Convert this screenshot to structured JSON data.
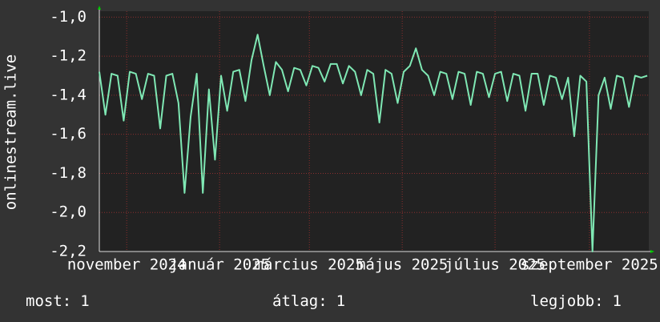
{
  "chart_data": {
    "type": "line",
    "y_label": "onlinestream.live",
    "xlim": [
      0,
      361
    ],
    "xticks": [
      {
        "value": 18,
        "label": "november 2024"
      },
      {
        "value": 79,
        "label": "január 2025"
      },
      {
        "value": 138,
        "label": "március 2025"
      },
      {
        "value": 199,
        "label": "május 2025"
      },
      {
        "value": 260,
        "label": "július 2025"
      },
      {
        "value": 322,
        "label": "szeptember 2025"
      }
    ],
    "ylim": [
      -2.2,
      -0.97
    ],
    "yticks": [
      {
        "value": -2.2,
        "label": "-2,2"
      },
      {
        "value": -2.0,
        "label": "-2,0"
      },
      {
        "value": -1.8,
        "label": "-1,8"
      },
      {
        "value": -1.6,
        "label": "-1,6"
      },
      {
        "value": -1.4,
        "label": "-1,4"
      },
      {
        "value": -1.2,
        "label": "-1,2"
      },
      {
        "value": -1.0,
        "label": "-1,0"
      }
    ],
    "grid": true,
    "series": [
      {
        "color": "#7fe8b4",
        "x": [
          0,
          4,
          8,
          12,
          16,
          20,
          24,
          28,
          32,
          36,
          40,
          44,
          48,
          52,
          56,
          60,
          64,
          68,
          72,
          76,
          80,
          84,
          88,
          92,
          96,
          100,
          104,
          108,
          112,
          116,
          120,
          124,
          128,
          132,
          136,
          140,
          144,
          148,
          152,
          156,
          160,
          164,
          168,
          172,
          176,
          180,
          184,
          188,
          192,
          196,
          200,
          204,
          208,
          212,
          216,
          220,
          224,
          228,
          232,
          236,
          240,
          244,
          248,
          252,
          256,
          260,
          264,
          268,
          272,
          276,
          280,
          284,
          288,
          292,
          296,
          300,
          304,
          308,
          312,
          316,
          320,
          324,
          328,
          332,
          336,
          340,
          344,
          348,
          352,
          356,
          360
        ],
        "values": [
          -1.28,
          -1.5,
          -1.29,
          -1.3,
          -1.53,
          -1.28,
          -1.29,
          -1.42,
          -1.29,
          -1.3,
          -1.57,
          -1.3,
          -1.29,
          -1.44,
          -1.9,
          -1.51,
          -1.29,
          -1.9,
          -1.37,
          -1.73,
          -1.3,
          -1.48,
          -1.28,
          -1.27,
          -1.43,
          -1.22,
          -1.09,
          -1.25,
          -1.4,
          -1.23,
          -1.27,
          -1.38,
          -1.26,
          -1.27,
          -1.35,
          -1.25,
          -1.26,
          -1.33,
          -1.24,
          -1.24,
          -1.34,
          -1.25,
          -1.28,
          -1.4,
          -1.27,
          -1.29,
          -1.54,
          -1.27,
          -1.29,
          -1.44,
          -1.28,
          -1.25,
          -1.16,
          -1.27,
          -1.3,
          -1.4,
          -1.28,
          -1.29,
          -1.42,
          -1.28,
          -1.29,
          -1.45,
          -1.28,
          -1.29,
          -1.41,
          -1.29,
          -1.28,
          -1.43,
          -1.29,
          -1.3,
          -1.48,
          -1.29,
          -1.29,
          -1.45,
          -1.3,
          -1.31,
          -1.42,
          -1.31,
          -1.61,
          -1.3,
          -1.33,
          -2.2,
          -1.4,
          -1.31,
          -1.47,
          -1.3,
          -1.31,
          -1.46,
          -1.3,
          -1.31,
          -1.3
        ]
      }
    ],
    "stats": [
      {
        "label": "most:",
        "value": 1
      },
      {
        "label": "átlag:",
        "value": 1
      },
      {
        "label": "legjobb:",
        "value": 1
      }
    ]
  }
}
